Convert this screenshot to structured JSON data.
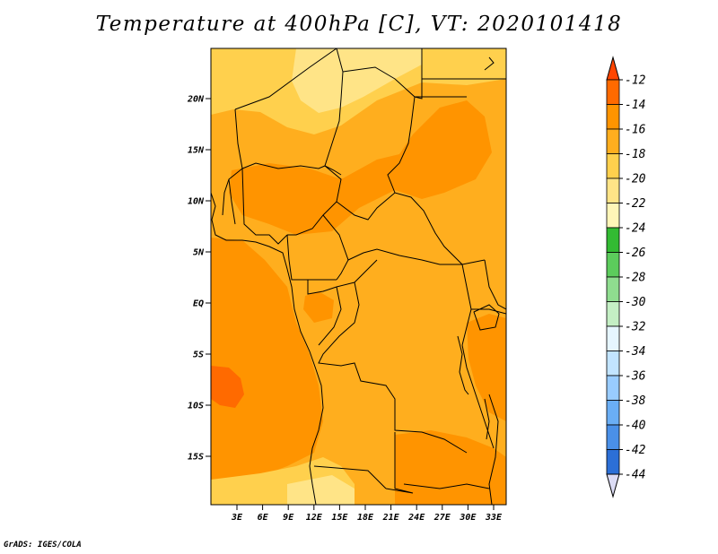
{
  "title": "Temperature at 400hPa [C], VT: 2020101418",
  "footer": "GrADS: IGES/COLA",
  "map": {
    "lat_ticks": [
      "20N",
      "15N",
      "10N",
      "5N",
      "EQ",
      "5S",
      "10S",
      "15S"
    ],
    "lon_ticks": [
      "3E",
      "6E",
      "9E",
      "12E",
      "15E",
      "18E",
      "21E",
      "24E",
      "27E",
      "30E",
      "33E"
    ]
  },
  "colorbar": {
    "labels": [
      "-12",
      "-14",
      "-16",
      "-18",
      "-20",
      "-22",
      "-24",
      "-26",
      "-28",
      "-30",
      "-32",
      "-34",
      "-36",
      "-38",
      "-40",
      "-42",
      "-44"
    ],
    "colors": [
      "#ff4500",
      "#ff6a00",
      "#ff9400",
      "#ffae1e",
      "#ffd04d",
      "#ffe487",
      "#fff6b8",
      "#33bb33",
      "#5ccc5c",
      "#8fdd8f",
      "#c4efc4",
      "#e6f6ff",
      "#c2e4ff",
      "#99ccff",
      "#6aaef5",
      "#4a90e8",
      "#2c6fd6",
      "#1a4fbf",
      "#0b2a8a",
      "#dcdcf5"
    ]
  }
}
